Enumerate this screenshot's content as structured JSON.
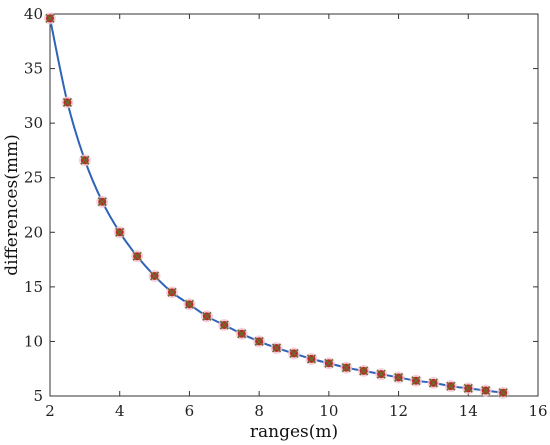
{
  "chart_data": {
    "type": "line",
    "title": "",
    "xlabel": "ranges(m)",
    "ylabel": "differences(mm)",
    "xlim": [
      2,
      16
    ],
    "ylim": [
      5,
      40
    ],
    "xticks": [
      2,
      4,
      6,
      8,
      10,
      12,
      14,
      16
    ],
    "yticks": [
      5,
      10,
      15,
      20,
      25,
      30,
      35,
      40
    ],
    "grid": false,
    "line_color": "#2e63b8",
    "marker_color_fill": "#c0282d",
    "marker_color_cross": "#6b6b2a",
    "x": [
      2,
      2.5,
      3,
      3.5,
      4,
      4.5,
      5,
      5.5,
      6,
      6.5,
      7,
      7.5,
      8,
      8.5,
      9,
      9.5,
      10,
      10.5,
      11,
      11.5,
      12,
      12.5,
      13,
      13.5,
      14,
      14.5,
      15
    ],
    "series": [
      {
        "values": [
          39.6,
          31.9,
          26.6,
          22.8,
          20.0,
          17.8,
          16.0,
          14.5,
          13.4,
          12.3,
          11.5,
          10.7,
          10.0,
          9.4,
          8.9,
          8.4,
          8.0,
          7.6,
          7.3,
          7.0,
          6.7,
          6.4,
          6.2,
          5.9,
          5.7,
          5.5,
          5.3
        ]
      }
    ]
  }
}
